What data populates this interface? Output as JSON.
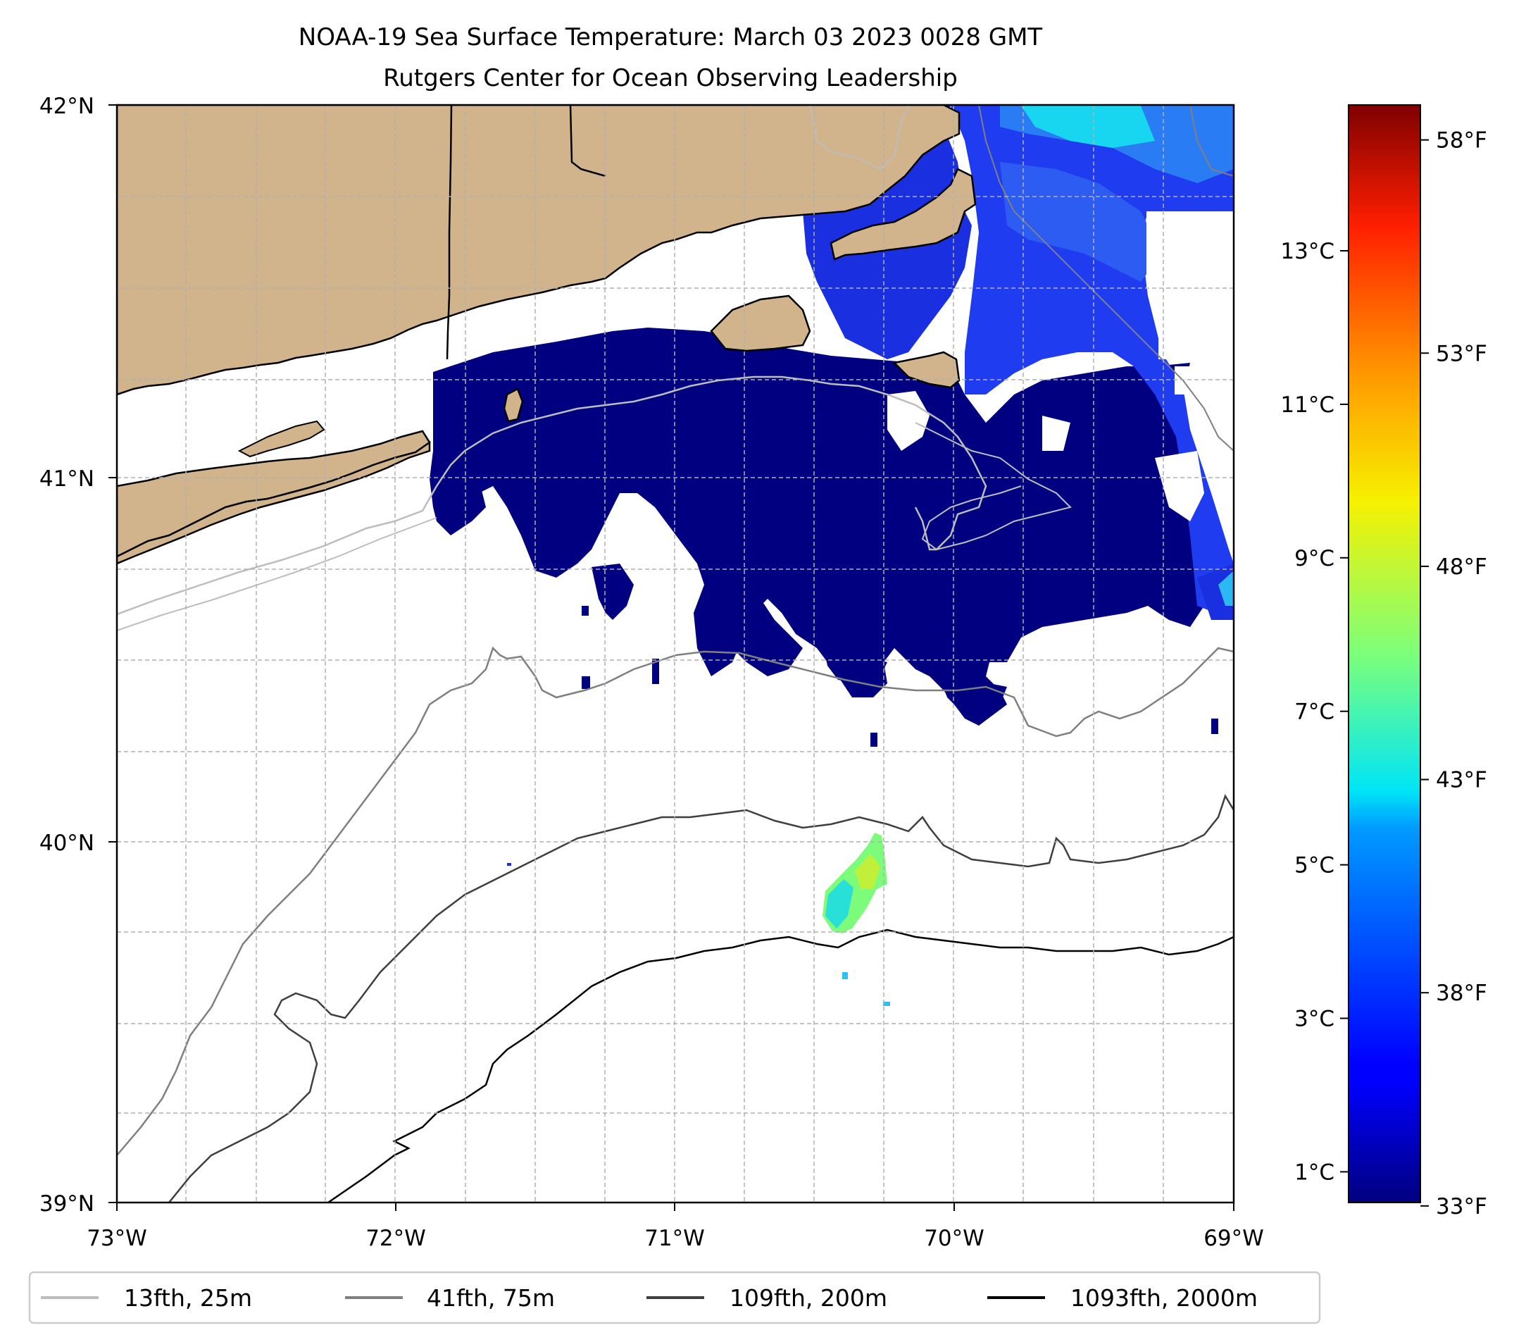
{
  "title": {
    "line1": "NOAA-19 Sea Surface Temperature: March 03 2023 0028 GMT",
    "line2": "Rutgers Center for Ocean Observing Leadership"
  },
  "map": {
    "lon_range": [
      -73,
      -69
    ],
    "lat_range": [
      39,
      42
    ],
    "lat_ticks": [
      {
        "value": 42,
        "label": "42°N"
      },
      {
        "value": 41,
        "label": "41°N"
      },
      {
        "value": 40,
        "label": "40°N"
      },
      {
        "value": 39,
        "label": "39°N"
      }
    ],
    "lon_ticks": [
      {
        "value": -73,
        "label": "73°W"
      },
      {
        "value": -72,
        "label": "72°W"
      },
      {
        "value": -71,
        "label": "71°W"
      },
      {
        "value": -70,
        "label": "70°W"
      },
      {
        "value": -69,
        "label": "69°W"
      }
    ],
    "grid": true,
    "colors": {
      "land": "#d2b48c",
      "coast": "#000000",
      "cold_water": "#000080",
      "grid": "#b0b0b0"
    }
  },
  "colorbar": {
    "colormap": "jet",
    "range_c": [
      0.6,
      14.9
    ],
    "celsius_ticks": [
      {
        "value": 1,
        "label": "1°C"
      },
      {
        "value": 3,
        "label": "3°C"
      },
      {
        "value": 5,
        "label": "5°C"
      },
      {
        "value": 7,
        "label": "7°C"
      },
      {
        "value": 9,
        "label": "9°C"
      },
      {
        "value": 11,
        "label": "11°C"
      },
      {
        "value": 13,
        "label": "13°C"
      }
    ],
    "fahrenheit_ticks": [
      {
        "value": 33,
        "label": "33°F"
      },
      {
        "value": 38,
        "label": "38°F"
      },
      {
        "value": 43,
        "label": "43°F"
      },
      {
        "value": 48,
        "label": "48°F"
      },
      {
        "value": 53,
        "label": "53°F"
      },
      {
        "value": 58,
        "label": "58°F"
      }
    ]
  },
  "legend": {
    "items": [
      {
        "label": "13fth, 25m",
        "color": "#bdbdbd"
      },
      {
        "label": "41fth, 75m",
        "color": "#7f7f7f"
      },
      {
        "label": "109fth, 200m",
        "color": "#3f3f3f"
      },
      {
        "label": "1093fth, 2000m",
        "color": "#000000"
      }
    ]
  }
}
